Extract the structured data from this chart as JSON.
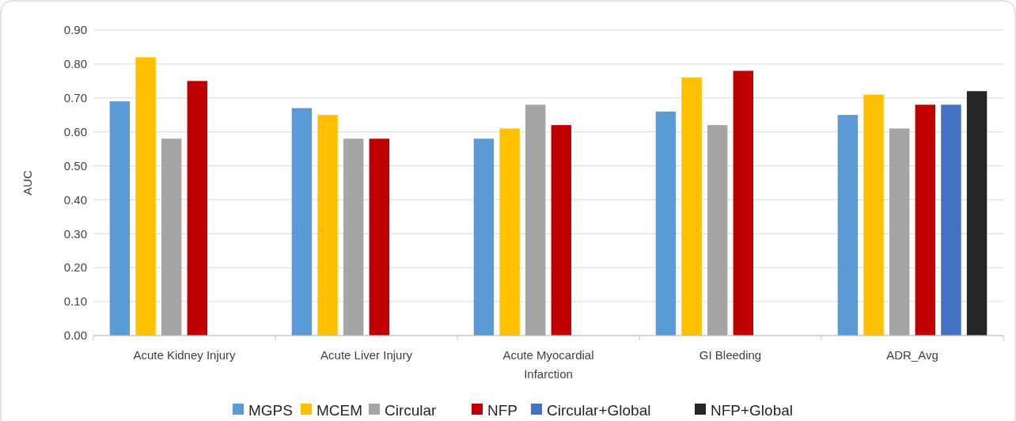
{
  "chart_data": {
    "type": "bar",
    "ylabel": "AUC",
    "categories": [
      "Acute Kidney Injury",
      "Acute Liver Injury",
      "Acute Myocardial Infarction",
      "GI Bleeding",
      "ADR_Avg"
    ],
    "series": [
      {
        "name": "MGPS",
        "color": "#5b9bd5",
        "values": [
          0.69,
          0.67,
          0.58,
          0.66,
          0.65
        ]
      },
      {
        "name": "MCEM",
        "color": "#ffc000",
        "values": [
          0.82,
          0.65,
          0.61,
          0.76,
          0.71
        ]
      },
      {
        "name": "Circular",
        "color": "#a5a5a5",
        "values": [
          0.58,
          0.58,
          0.68,
          0.62,
          0.61
        ]
      },
      {
        "name": "NFP",
        "color": "#c00000",
        "values": [
          0.75,
          0.58,
          0.62,
          0.78,
          0.68
        ]
      },
      {
        "name": "Circular+Global",
        "color": "#4472c4",
        "values": [
          null,
          null,
          null,
          null,
          0.68
        ]
      },
      {
        "name": "NFP+Global",
        "color": "#262626",
        "values": [
          null,
          null,
          null,
          null,
          0.72
        ]
      }
    ],
    "ylim": [
      0,
      0.9
    ],
    "yticks": [
      {
        "value": 0,
        "label": "0.00"
      },
      {
        "value": 0.1,
        "label": "0.10"
      },
      {
        "value": 0.2,
        "label": "0.20"
      },
      {
        "value": 0.3,
        "label": "0.30"
      },
      {
        "value": 0.4,
        "label": "0.40"
      },
      {
        "value": 0.5,
        "label": "0.50"
      },
      {
        "value": 0.6,
        "label": "0.60"
      },
      {
        "value": 0.7,
        "label": "0.70"
      },
      {
        "value": 0.8,
        "label": "0.80"
      },
      {
        "value": 0.9,
        "label": "0.90"
      }
    ],
    "grid": "y",
    "legend": "bottom"
  }
}
